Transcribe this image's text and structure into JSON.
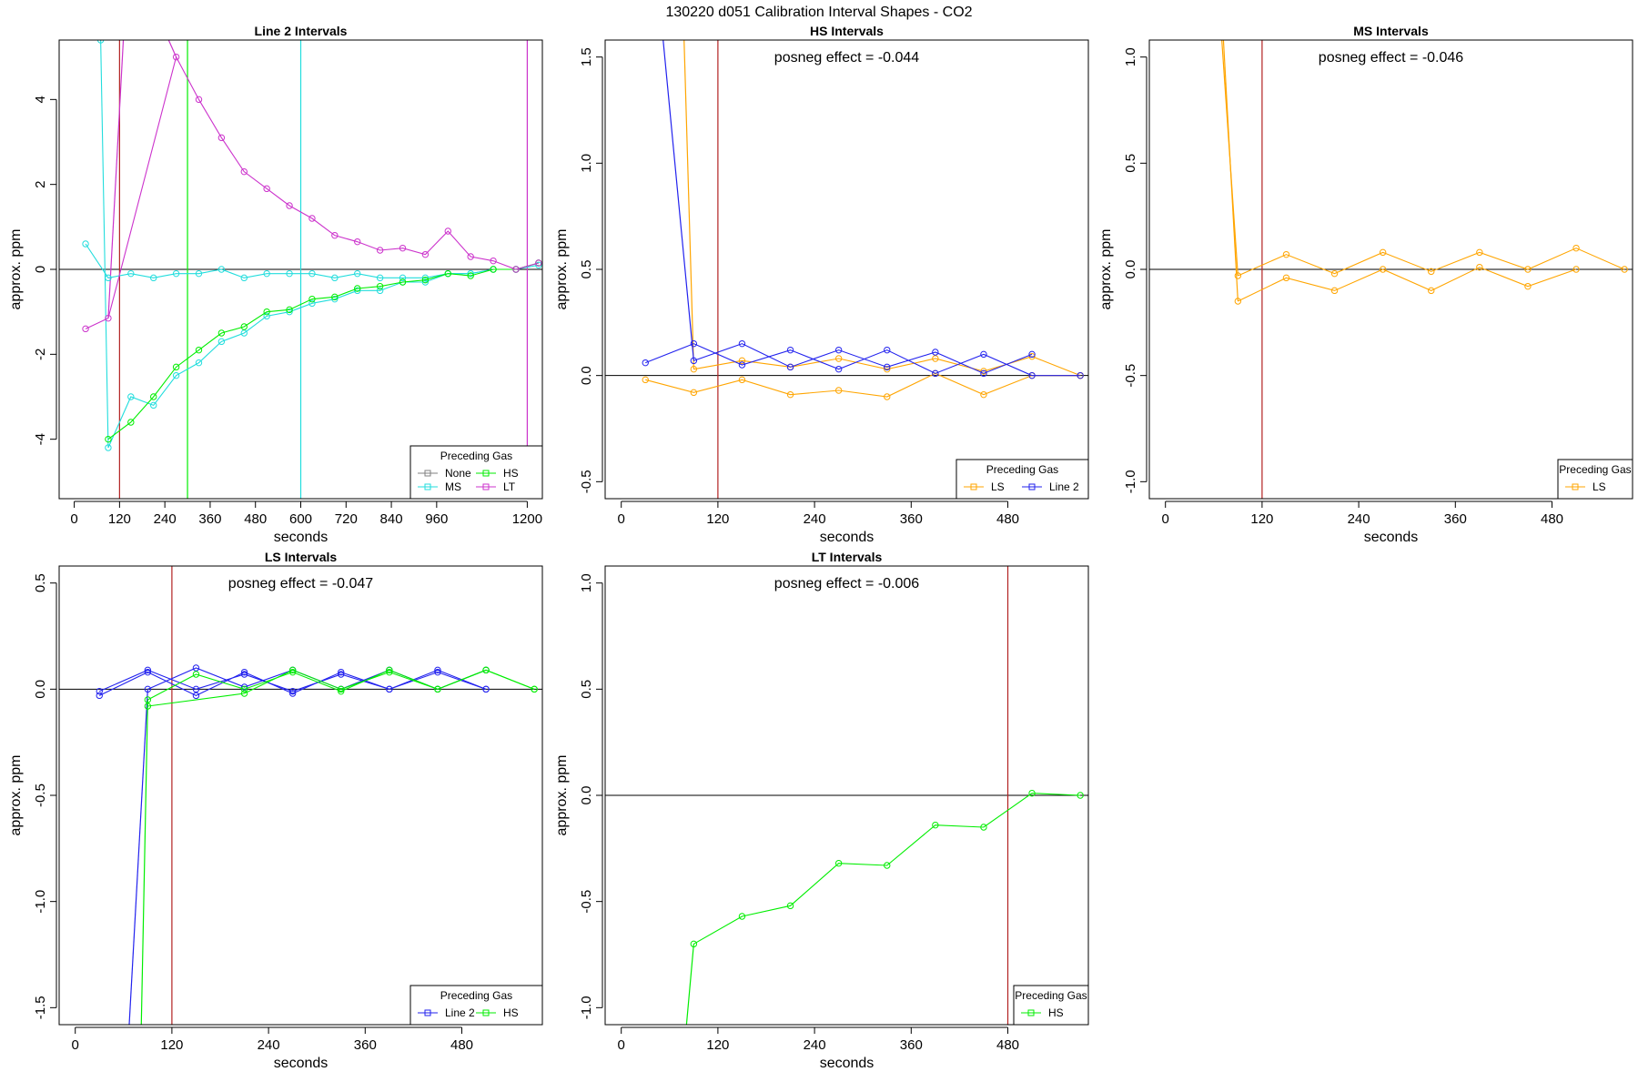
{
  "figure_title": "130220  d051   Calibration Interval Shapes - CO2",
  "legend_title": "Preceding Gas",
  "colors": {
    "None": "#808080",
    "HS": "#00ee00",
    "MS": "#22dddd",
    "LT": "#cc33cc",
    "LS": "#ffa500",
    "Line 2": "#2222ee",
    "vline_red": "#b22222",
    "vline_green": "#00ee00",
    "vline_cyan": "#22dddd",
    "vline_magenta": "#cc33cc"
  },
  "chart_data": [
    {
      "id": "line2",
      "type": "line",
      "title": "Line 2 Intervals",
      "xlabel": "seconds",
      "ylabel": "approx. ppm",
      "xlim": [
        -40,
        1240
      ],
      "ylim": [
        -5.4,
        5.4
      ],
      "xticks": [
        0,
        120,
        240,
        360,
        480,
        600,
        720,
        840,
        960,
        1200
      ],
      "yticks": [
        -4,
        -2,
        0,
        2,
        4
      ],
      "annotation": "",
      "vlines": [
        {
          "x": 120,
          "color": "vline_red"
        },
        {
          "x": 300,
          "color": "vline_green"
        },
        {
          "x": 600,
          "color": "vline_cyan"
        },
        {
          "x": 1200,
          "color": "vline_magenta"
        }
      ],
      "legend": {
        "entries": [
          "None",
          "HS",
          "MS",
          "LT"
        ],
        "ncol": 2,
        "place": "bottom-right"
      },
      "series": [
        {
          "name": "MS",
          "x": [
            30,
            90,
            150,
            210,
            270,
            330,
            390,
            450,
            510,
            570,
            630,
            690,
            750,
            810,
            870,
            930,
            990,
            1050,
            1110,
            1170,
            1230
          ],
          "y": [
            0.6,
            -0.2,
            -0.1,
            -0.2,
            -0.1,
            -0.1,
            0.0,
            -0.2,
            -0.1,
            -0.1,
            -0.1,
            -0.2,
            -0.1,
            -0.2,
            -0.2,
            -0.2,
            -0.1,
            -0.1,
            0.0,
            0.0,
            0.1
          ]
        },
        {
          "name": "MS",
          "x": [
            70,
            90,
            150,
            210,
            270,
            330,
            390,
            450,
            510,
            570,
            630,
            690,
            750,
            810,
            870,
            930,
            990,
            1050,
            1110,
            1170,
            1230
          ],
          "y": [
            5.4,
            -4.2,
            -3.0,
            -3.2,
            -2.5,
            -2.2,
            -1.7,
            -1.5,
            -1.1,
            -1.0,
            -0.8,
            -0.7,
            -0.5,
            -0.5,
            -0.3,
            -0.3,
            -0.1,
            -0.1,
            0.0,
            0.0,
            0.15
          ]
        },
        {
          "name": "HS",
          "x": [
            90,
            150,
            210,
            270,
            330,
            390,
            450,
            510,
            570,
            630,
            690,
            750,
            810,
            870,
            930,
            990,
            1050,
            1110,
            1170,
            1230
          ],
          "y": [
            -4.0,
            -3.6,
            -3.0,
            -2.3,
            -1.9,
            -1.5,
            -1.35,
            -1.0,
            -0.95,
            -0.7,
            -0.65,
            -0.45,
            -0.4,
            -0.3,
            -0.25,
            -0.1,
            -0.15,
            0.0,
            0.0,
            0.15
          ]
        },
        {
          "name": "LT",
          "x": [
            30,
            90,
            270,
            330,
            390,
            450,
            510,
            570,
            630,
            690,
            750,
            810,
            870,
            930,
            990,
            1050,
            1110,
            1170,
            1230
          ],
          "y": [
            -1.4,
            -1.15,
            5.0,
            4.0,
            3.1,
            2.3,
            1.9,
            1.5,
            1.2,
            0.8,
            0.65,
            0.45,
            0.5,
            0.35,
            0.9,
            0.3,
            0.2,
            0.0,
            0.15
          ]
        }
      ],
      "connectors": [
        {
          "color": "LT",
          "x": [
            90,
            130
          ],
          "y": [
            -1.15,
            5.4
          ]
        },
        {
          "color": "LT",
          "x": [
            250,
            270
          ],
          "y": [
            5.4,
            5.0
          ]
        }
      ]
    },
    {
      "id": "hs",
      "type": "line",
      "title": "HS Intervals",
      "xlabel": "seconds",
      "ylabel": "approx. ppm",
      "xlim": [
        -20,
        580
      ],
      "ylim": [
        -0.58,
        1.58
      ],
      "xticks": [
        0,
        120,
        240,
        360,
        480
      ],
      "yticks": [
        -0.5,
        0.0,
        0.5,
        1.0,
        1.5
      ],
      "annotation": "posneg effect = -0.044",
      "vlines": [
        {
          "x": 120,
          "color": "vline_red"
        }
      ],
      "legend": {
        "entries": [
          "LS",
          "Line 2"
        ],
        "ncol": 2,
        "place": "bottom-right"
      },
      "series": [
        {
          "name": "LS",
          "x": [
            30,
            90,
            150,
            210,
            270,
            330,
            390,
            450,
            510,
            570
          ],
          "y": [
            -0.02,
            -0.08,
            -0.02,
            -0.09,
            -0.07,
            -0.1,
            0.01,
            -0.09,
            0.0,
            0.0
          ]
        },
        {
          "name": "LS",
          "x": [
            90,
            150,
            210,
            270,
            330,
            390,
            450,
            510,
            570
          ],
          "y": [
            0.03,
            0.07,
            0.04,
            0.08,
            0.03,
            0.08,
            0.02,
            0.09,
            0.0
          ]
        },
        {
          "name": "Line 2",
          "x": [
            30,
            90,
            150,
            210,
            270,
            330,
            390,
            450,
            510,
            570
          ],
          "y": [
            0.06,
            0.15,
            0.05,
            0.12,
            0.03,
            0.12,
            0.01,
            0.1,
            0.0,
            0.0
          ]
        },
        {
          "name": "Line 2",
          "x": [
            90,
            150,
            210,
            270,
            330,
            390,
            450,
            510
          ],
          "y": [
            0.07,
            0.15,
            0.04,
            0.12,
            0.04,
            0.11,
            0.01,
            0.1
          ]
        }
      ],
      "connectors": [
        {
          "color": "LS",
          "x": [
            78,
            90
          ],
          "y": [
            1.58,
            0.03
          ]
        },
        {
          "color": "Line 2",
          "x": [
            52,
            90
          ],
          "y": [
            1.58,
            0.07
          ]
        }
      ]
    },
    {
      "id": "ms",
      "type": "line",
      "title": "MS Intervals",
      "xlabel": "seconds",
      "ylabel": "approx. ppm",
      "xlim": [
        -20,
        580
      ],
      "ylim": [
        -1.08,
        1.08
      ],
      "xticks": [
        0,
        120,
        240,
        360,
        480
      ],
      "yticks": [
        -1.0,
        -0.5,
        0.0,
        0.5,
        1.0
      ],
      "annotation": "posneg effect = -0.046",
      "vlines": [
        {
          "x": 120,
          "color": "vline_red"
        }
      ],
      "legend": {
        "entries": [
          "LS"
        ],
        "ncol": 1,
        "place": "bottom-right"
      },
      "series": [
        {
          "name": "LS",
          "x": [
            90,
            150,
            210,
            270,
            330,
            390,
            450,
            510,
            570
          ],
          "y": [
            -0.03,
            0.07,
            -0.02,
            0.08,
            -0.01,
            0.08,
            0.0,
            0.1,
            0.0
          ]
        },
        {
          "name": "LS",
          "x": [
            90,
            150,
            210,
            270,
            330,
            390,
            450,
            510
          ],
          "y": [
            -0.15,
            -0.04,
            -0.1,
            0.0,
            -0.1,
            0.01,
            -0.08,
            0.0
          ]
        }
      ],
      "connectors": [
        {
          "color": "LS",
          "x": [
            70,
            90
          ],
          "y": [
            1.08,
            -0.03
          ]
        },
        {
          "color": "LS",
          "x": [
            72,
            90
          ],
          "y": [
            1.08,
            -0.15
          ]
        }
      ]
    },
    {
      "id": "ls",
      "type": "line",
      "title": "LS Intervals",
      "xlabel": "seconds",
      "ylabel": "approx. ppm",
      "xlim": [
        -20,
        580
      ],
      "ylim": [
        -1.58,
        0.58
      ],
      "xticks": [
        0,
        120,
        240,
        360,
        480
      ],
      "yticks": [
        -1.5,
        -1.0,
        -0.5,
        0.0,
        0.5
      ],
      "annotation": "posneg effect = -0.047",
      "vlines": [
        {
          "x": 120,
          "color": "vline_red"
        }
      ],
      "legend": {
        "entries": [
          "Line 2",
          "HS"
        ],
        "ncol": 2,
        "place": "bottom-right"
      },
      "series": [
        {
          "name": "Line 2",
          "x": [
            30,
            90,
            150,
            210,
            270,
            330,
            390,
            450,
            510
          ],
          "y": [
            -0.03,
            0.08,
            -0.03,
            0.08,
            -0.02,
            0.08,
            0.0,
            0.09,
            0.0
          ]
        },
        {
          "name": "Line 2",
          "x": [
            30,
            90,
            150,
            210,
            270,
            330,
            390,
            450,
            510
          ],
          "y": [
            -0.01,
            0.09,
            0.0,
            0.07,
            -0.01,
            0.07,
            0.0,
            0.08,
            0.0
          ]
        },
        {
          "name": "Line 2",
          "x": [
            90,
            150,
            210,
            270,
            330,
            390,
            450,
            510
          ],
          "y": [
            0.0,
            0.1,
            0.01,
            0.09,
            0.0,
            0.09,
            0.0,
            0.09
          ]
        },
        {
          "name": "HS",
          "x": [
            90,
            150,
            210,
            270,
            330,
            390,
            450,
            510,
            570
          ],
          "y": [
            -0.05,
            0.07,
            0.0,
            0.08,
            -0.01,
            0.09,
            0.0,
            0.09,
            0.0
          ]
        },
        {
          "name": "HS",
          "x": [
            90,
            210,
            270,
            330,
            390,
            450,
            510,
            570
          ],
          "y": [
            -0.08,
            -0.02,
            0.09,
            0.0,
            0.08,
            0.0,
            0.09,
            0.0
          ]
        }
      ],
      "connectors": [
        {
          "color": "Line 2",
          "x": [
            67,
            90
          ],
          "y": [
            -1.58,
            0.0
          ]
        },
        {
          "color": "HS",
          "x": [
            82,
            90
          ],
          "y": [
            -1.58,
            -0.05
          ]
        }
      ]
    },
    {
      "id": "lt",
      "type": "line",
      "title": "LT Intervals",
      "xlabel": "seconds",
      "ylabel": "approx. ppm",
      "xlim": [
        -20,
        580
      ],
      "ylim": [
        -1.08,
        1.08
      ],
      "xticks": [
        0,
        120,
        240,
        360,
        480
      ],
      "yticks": [
        -1.0,
        -0.5,
        0.0,
        0.5,
        1.0
      ],
      "annotation": "posneg effect = -0.006",
      "vlines": [
        {
          "x": 480,
          "color": "vline_red"
        }
      ],
      "legend": {
        "entries": [
          "HS"
        ],
        "ncol": 1,
        "place": "bottom-right"
      },
      "series": [
        {
          "name": "HS",
          "x": [
            90,
            150,
            210,
            270,
            330,
            390,
            450,
            510,
            570
          ],
          "y": [
            -0.7,
            -0.57,
            -0.52,
            -0.32,
            -0.33,
            -0.14,
            -0.15,
            0.01,
            0.0
          ]
        }
      ],
      "connectors": [
        {
          "color": "HS",
          "x": [
            81,
            90
          ],
          "y": [
            -1.08,
            -0.7
          ]
        }
      ]
    }
  ]
}
